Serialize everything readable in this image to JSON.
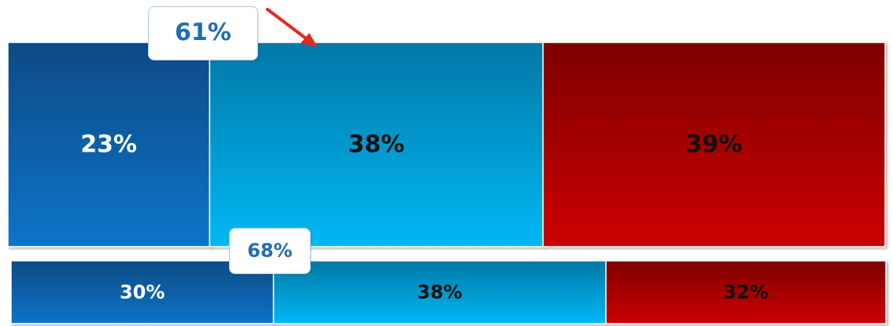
{
  "chart_data": {
    "type": "bar",
    "orientation": "horizontal-stacked-100",
    "rows": [
      {
        "segments": [
          {
            "value": 23,
            "label": "23%",
            "color_top": "#0a4a85",
            "color_bottom": "#0d74c8",
            "text_color": "#ffffff"
          },
          {
            "value": 38,
            "label": "38%",
            "color_top": "#0378a6",
            "color_bottom": "#00b8f4",
            "text_color": "#111111"
          },
          {
            "value": 39,
            "label": "39%",
            "color_top": "#7e0000",
            "color_bottom": "#cc0000",
            "text_color": "#111111"
          }
        ],
        "callout": "61%"
      },
      {
        "segments": [
          {
            "value": 30,
            "label": "30%",
            "color_top": "#0a4a85",
            "color_bottom": "#0d74c8",
            "text_color": "#ffffff"
          },
          {
            "value": 38,
            "label": "38%",
            "color_top": "#0378a6",
            "color_bottom": "#00b8f4",
            "text_color": "#111111"
          },
          {
            "value": 32,
            "label": "32%",
            "color_top": "#7e0000",
            "color_bottom": "#cc0000",
            "text_color": "#111111"
          }
        ],
        "callout": "68%"
      }
    ],
    "arrow_color": "#e8281f",
    "callout_text_color": "#1f6db5"
  }
}
